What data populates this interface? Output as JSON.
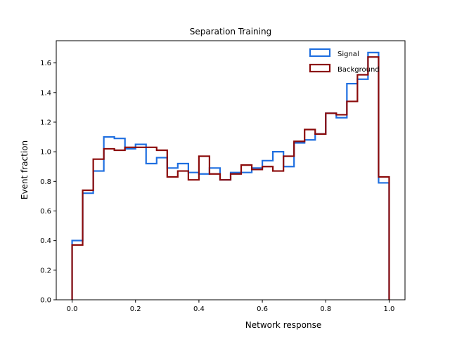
{
  "chart_data": {
    "type": "histogram-step",
    "title": "Separation Training",
    "xlabel": "Network response",
    "ylabel": "Event fraction",
    "xlim": [
      -0.05,
      1.05
    ],
    "ylim": [
      0.0,
      1.75
    ],
    "xticks": [
      0.0,
      0.2,
      0.4,
      0.6,
      0.8,
      1.0
    ],
    "xtick_labels": [
      "0.0",
      "0.2",
      "0.4",
      "0.6",
      "0.8",
      "1.0"
    ],
    "yticks": [
      0.0,
      0.2,
      0.4,
      0.6,
      0.8,
      1.0,
      1.2,
      1.4,
      1.6
    ],
    "ytick_labels": [
      "0.0",
      "0.2",
      "0.4",
      "0.6",
      "0.8",
      "1.0",
      "1.2",
      "1.4",
      "1.6"
    ],
    "bin_edges": [
      0.0,
      0.0333,
      0.0667,
      0.1,
      0.1333,
      0.1667,
      0.2,
      0.2333,
      0.2667,
      0.3,
      0.3333,
      0.3667,
      0.4,
      0.4333,
      0.4667,
      0.5,
      0.5333,
      0.5667,
      0.6,
      0.6333,
      0.6667,
      0.7,
      0.7333,
      0.7667,
      0.8,
      0.8333,
      0.8667,
      0.9,
      0.9333,
      0.9667,
      1.0
    ],
    "legend_position": "upper right",
    "grid": false,
    "series": [
      {
        "name": "Signal",
        "color": "#1f6fe0",
        "values": [
          0.4,
          0.72,
          0.87,
          1.1,
          1.09,
          1.02,
          1.05,
          0.92,
          0.96,
          0.89,
          0.92,
          0.86,
          0.85,
          0.89,
          0.81,
          0.86,
          0.86,
          0.89,
          0.94,
          1.0,
          0.9,
          1.06,
          1.08,
          1.12,
          1.26,
          1.23,
          1.46,
          1.49,
          1.67,
          0.79
        ]
      },
      {
        "name": "Background",
        "color": "#8b0a0a",
        "values": [
          0.37,
          0.74,
          0.95,
          1.02,
          1.01,
          1.03,
          1.03,
          1.03,
          1.01,
          0.83,
          0.87,
          0.81,
          0.97,
          0.85,
          0.81,
          0.85,
          0.91,
          0.88,
          0.9,
          0.87,
          0.97,
          1.07,
          1.15,
          1.12,
          1.26,
          1.25,
          1.34,
          1.52,
          1.64,
          0.83
        ]
      }
    ]
  }
}
